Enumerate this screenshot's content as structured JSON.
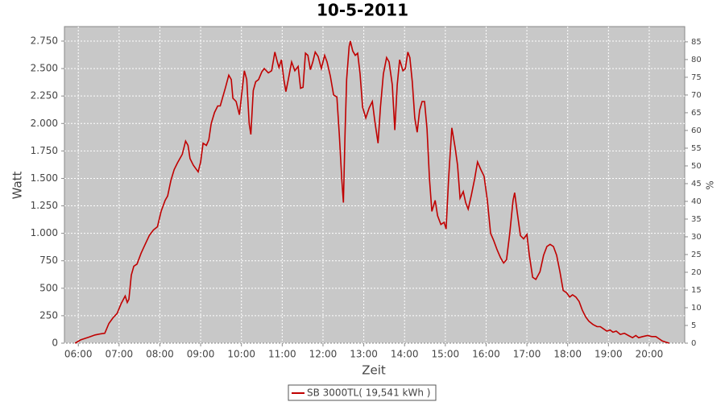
{
  "chart_data": {
    "type": "line",
    "title": "10-5-2011",
    "x_label": "Zeit",
    "y_label": "Watt",
    "y2_label": "%",
    "xlim": [
      5.66,
      20.87
    ],
    "ylim": [
      0,
      2882
    ],
    "y2lim": [
      0,
      89.3
    ],
    "xticks": [
      {
        "value": 6,
        "label": "06:00"
      },
      {
        "value": 7,
        "label": "07:00"
      },
      {
        "value": 8,
        "label": "08:00"
      },
      {
        "value": 9,
        "label": "09:00"
      },
      {
        "value": 10,
        "label": "10:00"
      },
      {
        "value": 11,
        "label": "11:00"
      },
      {
        "value": 12,
        "label": "12:00"
      },
      {
        "value": 13,
        "label": "13:00"
      },
      {
        "value": 14,
        "label": "14:00"
      },
      {
        "value": 15,
        "label": "15:00"
      },
      {
        "value": 16,
        "label": "16:00"
      },
      {
        "value": 17,
        "label": "17:00"
      },
      {
        "value": 18,
        "label": "18:00"
      },
      {
        "value": 19,
        "label": "19:00"
      },
      {
        "value": 20,
        "label": "20:00"
      }
    ],
    "yticks": [
      0,
      250,
      500,
      750,
      {
        "value": 1000,
        "label": "1.000"
      },
      {
        "value": 1250,
        "label": "1.250"
      },
      {
        "value": 1500,
        "label": "1.500"
      },
      {
        "value": 1750,
        "label": "1.750"
      },
      {
        "value": 2000,
        "label": "2.000"
      },
      {
        "value": 2250,
        "label": "2.250"
      },
      {
        "value": 2500,
        "label": "2.500"
      },
      {
        "value": 2750,
        "label": "2.750"
      }
    ],
    "y2ticks": [
      0,
      5,
      10,
      15,
      20,
      25,
      30,
      35,
      40,
      45,
      50,
      55,
      60,
      65,
      70,
      75,
      80,
      85
    ],
    "grid": true,
    "legend": "bottom",
    "x": [
      5.92,
      6.06,
      6.26,
      6.41,
      6.55,
      6.65,
      6.75,
      6.85,
      6.95,
      7.05,
      7.15,
      7.2,
      7.24,
      7.3,
      7.36,
      7.44,
      7.54,
      7.64,
      7.74,
      7.84,
      7.94,
      8.03,
      8.13,
      8.19,
      8.27,
      8.35,
      8.43,
      8.55,
      8.63,
      8.69,
      8.74,
      8.82,
      8.94,
      9.0,
      9.06,
      9.14,
      9.2,
      9.26,
      9.34,
      9.42,
      9.48,
      9.55,
      9.61,
      9.69,
      9.75,
      9.79,
      9.87,
      9.95,
      10.07,
      10.13,
      10.19,
      10.23,
      10.29,
      10.35,
      10.42,
      10.5,
      10.56,
      10.66,
      10.74,
      10.82,
      10.88,
      10.92,
      10.98,
      11.04,
      11.09,
      11.15,
      11.23,
      11.31,
      11.39,
      11.45,
      11.51,
      11.57,
      11.63,
      11.69,
      11.75,
      11.81,
      11.88,
      11.96,
      12.04,
      12.1,
      12.18,
      12.26,
      12.34,
      12.4,
      12.46,
      12.5,
      12.54,
      12.58,
      12.64,
      12.67,
      12.73,
      12.79,
      12.85,
      12.91,
      12.97,
      13.05,
      13.13,
      13.21,
      13.27,
      13.35,
      13.41,
      13.48,
      13.56,
      13.62,
      13.7,
      13.76,
      13.82,
      13.88,
      13.96,
      14.02,
      14.08,
      14.13,
      14.19,
      14.25,
      14.31,
      14.37,
      14.43,
      14.49,
      14.55,
      14.61,
      14.67,
      14.75,
      14.81,
      14.89,
      14.97,
      15.02,
      15.08,
      15.16,
      15.24,
      15.3,
      15.36,
      15.44,
      15.5,
      15.56,
      15.64,
      15.72,
      15.79,
      15.87,
      15.95,
      16.03,
      16.11,
      16.19,
      16.27,
      16.35,
      16.43,
      16.5,
      16.58,
      16.66,
      16.7,
      16.76,
      16.84,
      16.92,
      17.0,
      17.06,
      17.14,
      17.22,
      17.32,
      17.41,
      17.49,
      17.57,
      17.65,
      17.73,
      17.81,
      17.89,
      17.97,
      18.05,
      18.12,
      18.2,
      18.28,
      18.36,
      18.44,
      18.52,
      18.62,
      18.72,
      18.8,
      18.88,
      18.96,
      19.04,
      19.11,
      19.19,
      19.29,
      19.39,
      19.49,
      19.59,
      19.67,
      19.74,
      19.84,
      19.96,
      20.06,
      20.16,
      20.24,
      20.32,
      20.4,
      20.49
    ],
    "series": [
      {
        "name": "SB 3000TL( 19,541 kWh )",
        "color": "#c00000",
        "values": [
          0,
          30,
          55,
          75,
          85,
          90,
          180,
          230,
          270,
          360,
          430,
          370,
          400,
          620,
          700,
          720,
          820,
          900,
          980,
          1030,
          1060,
          1200,
          1300,
          1340,
          1480,
          1580,
          1640,
          1720,
          1840,
          1800,
          1680,
          1620,
          1560,
          1650,
          1820,
          1800,
          1850,
          2000,
          2100,
          2160,
          2160,
          2250,
          2330,
          2440,
          2400,
          2230,
          2200,
          2080,
          2480,
          2400,
          2000,
          1900,
          2300,
          2380,
          2400,
          2470,
          2500,
          2460,
          2480,
          2650,
          2560,
          2510,
          2580,
          2400,
          2290,
          2400,
          2560,
          2480,
          2520,
          2320,
          2330,
          2640,
          2620,
          2490,
          2560,
          2650,
          2610,
          2500,
          2620,
          2560,
          2430,
          2260,
          2240,
          1900,
          1500,
          1280,
          1900,
          2400,
          2700,
          2750,
          2660,
          2620,
          2640,
          2450,
          2150,
          2050,
          2140,
          2200,
          2020,
          1820,
          2150,
          2450,
          2600,
          2560,
          2350,
          1940,
          2350,
          2580,
          2480,
          2500,
          2650,
          2600,
          2380,
          2050,
          1920,
          2120,
          2200,
          2200,
          1950,
          1500,
          1200,
          1300,
          1160,
          1080,
          1100,
          1040,
          1500,
          1960,
          1780,
          1620,
          1320,
          1380,
          1280,
          1220,
          1350,
          1500,
          1650,
          1580,
          1520,
          1300,
          1000,
          930,
          850,
          780,
          730,
          760,
          1000,
          1300,
          1370,
          1200,
          980,
          950,
          990,
          800,
          600,
          580,
          650,
          800,
          880,
          900,
          880,
          800,
          650,
          480,
          460,
          420,
          440,
          420,
          380,
          300,
          240,
          200,
          170,
          150,
          150,
          130,
          110,
          120,
          100,
          110,
          80,
          90,
          70,
          50,
          70,
          50,
          60,
          70,
          60,
          60,
          40,
          20,
          10,
          0
        ]
      }
    ]
  }
}
